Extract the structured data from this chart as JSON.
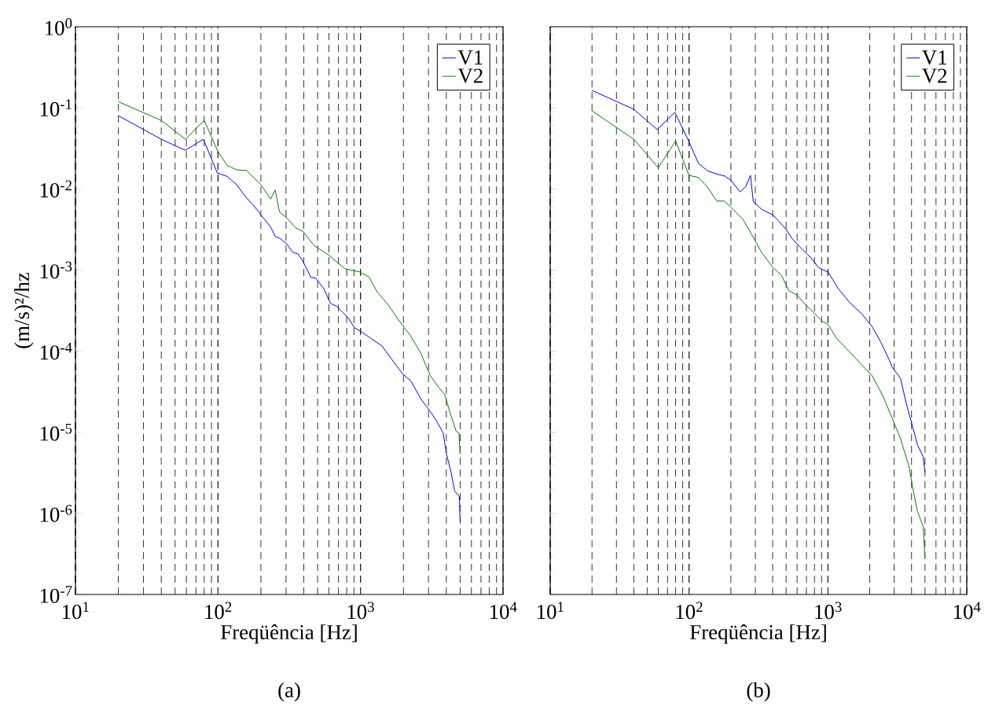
{
  "chart_data": [
    {
      "type": "line",
      "xlabel": "Freqüência [Hz]",
      "ylabel": "(m/s)²/hz",
      "log": "xy",
      "grid": "x",
      "legend": "top right",
      "xlim": [
        10,
        10000
      ],
      "ylim": [
        1e-07,
        1
      ],
      "xticks": [
        {
          "value": 10,
          "label": "10$^{1}$"
        },
        {
          "value": 100,
          "label": "10$^{2}$"
        },
        {
          "value": 1000,
          "label": "10$^{3}$"
        },
        {
          "value": 10000,
          "label": "10$^{4}$"
        }
      ],
      "yticks": [
        {
          "value": 1e-07,
          "label": "10$^{-7}$"
        },
        {
          "value": 1e-06,
          "label": "10$^{-6}$"
        },
        {
          "value": 1e-05,
          "label": "10$^{-5}$"
        },
        {
          "value": 0.0001,
          "label": "10$^{-4}$"
        },
        {
          "value": 0.001,
          "label": "10$^{-3}$"
        },
        {
          "value": 0.01,
          "label": "10$^{-2}$"
        },
        {
          "value": 0.1,
          "label": "10$^{-1}$"
        },
        {
          "value": 1,
          "label": "10$^{0}$"
        }
      ],
      "annotations": [
        "(a)"
      ],
      "series": [
        {
          "name": "V1",
          "color": "#0000ff",
          "x": [
            20,
            40,
            59,
            79,
            99,
            116,
            135,
            158,
            176,
            200,
            234,
            252,
            273,
            304,
            334,
            364,
            394,
            449,
            484,
            553,
            614,
            682,
            757,
            818,
            906,
            1035,
            1209,
            1413,
            1651,
            1982,
            2254,
            2642,
            3090,
            3430,
            3800,
            4010,
            4320,
            4570,
            4940,
            5000
          ],
          "values": [
            0.08,
            0.041,
            0.03,
            0.041,
            0.0157,
            0.0143,
            0.0113,
            0.0078,
            0.0064,
            0.0048,
            0.0034,
            0.0026,
            0.00245,
            0.0021,
            0.00166,
            0.00158,
            0.00129,
            0.00081,
            0.0008,
            0.00059,
            0.00039,
            0.000356,
            0.000295,
            0.000258,
            0.000195,
            0.000169,
            0.00014,
            0.000116,
            8e-05,
            5.2e-05,
            4.3e-05,
            2.6e-05,
            1.8e-05,
            1.36e-05,
            9.8e-06,
            5.4e-06,
            3.2e-06,
            1.9e-06,
            1.6e-06,
            7.9e-07
          ]
        },
        {
          "name": "V2",
          "color": "#008000",
          "x": [
            20,
            40,
            59,
            80,
            100,
            116,
            135,
            158,
            200,
            234,
            252,
            270,
            304,
            351,
            394,
            473,
            598,
            776,
            982,
            1148,
            1307,
            1570,
            1836,
            2255,
            2642,
            3090,
            3520,
            3910,
            4220,
            4690,
            4900,
            5000
          ],
          "values": [
            0.119,
            0.07,
            0.041,
            0.07,
            0.029,
            0.0195,
            0.0172,
            0.0169,
            0.0113,
            0.0075,
            0.0097,
            0.0052,
            0.0044,
            0.0033,
            0.003,
            0.002,
            0.00153,
            0.00104,
            0.00095,
            0.00082,
            0.00054,
            0.00037,
            0.000246,
            0.000153,
            9.5e-05,
            5e-05,
            3.6e-05,
            2.9e-05,
            1.8e-05,
            1.03e-05,
            9.8e-06,
            5.4e-06
          ]
        }
      ]
    },
    {
      "type": "line",
      "xlabel": "Freqüência [Hz]",
      "log": "xy",
      "grid": "x",
      "legend": "top right",
      "tick_labels": "x",
      "xlim": [
        10,
        10000
      ],
      "ylim": [
        1e-07,
        1
      ],
      "xticks": [
        {
          "value": 10,
          "label": "10$^{1}$"
        },
        {
          "value": 100,
          "label": "10$^{2}$"
        },
        {
          "value": 1000,
          "label": "10$^{3}$"
        },
        {
          "value": 10000,
          "label": "10$^{4}$"
        }
      ],
      "yticks": [
        {
          "value": 1e-07,
          "label": null
        },
        {
          "value": 1e-06,
          "label": null
        },
        {
          "value": 1e-05,
          "label": null
        },
        {
          "value": 0.0001,
          "label": null
        },
        {
          "value": 0.001,
          "label": null
        },
        {
          "value": 0.01,
          "label": null
        },
        {
          "value": 0.1,
          "label": null
        },
        {
          "value": 1,
          "label": null
        }
      ],
      "annotations": [
        "(b)"
      ],
      "series": [
        {
          "name": "V1",
          "color": "#0000ff",
          "x": [
            20,
            40,
            59,
            79,
            98,
            117,
            136,
            158,
            181,
            199,
            233,
            256,
            277,
            290,
            334,
            403,
            443,
            498,
            547,
            615,
            692,
            759,
            855,
            1007,
            1186,
            1432,
            1767,
            2080,
            2394,
            2756,
            2897,
            3334,
            3660,
            4020,
            4415,
            4850,
            5000
          ],
          "values": [
            0.164,
            0.096,
            0.054,
            0.088,
            0.041,
            0.0206,
            0.0167,
            0.0153,
            0.0144,
            0.0129,
            0.0092,
            0.0107,
            0.0147,
            0.007,
            0.0056,
            0.00475,
            0.004,
            0.0032,
            0.0025,
            0.002,
            0.00163,
            0.00141,
            0.00107,
            0.00094,
            0.00059,
            0.0004,
            0.000284,
            0.000201,
            0.000131,
            7.9e-05,
            6.4e-05,
            4.6e-05,
            2.3e-05,
            1.27e-05,
            7e-06,
            5e-06,
            3.2e-06
          ]
        },
        {
          "name": "V2",
          "color": "#008000",
          "x": [
            20,
            40,
            60,
            80,
            100,
            117,
            136,
            158,
            179,
            199,
            245,
            304,
            334,
            403,
            464,
            521,
            600,
            692,
            795,
            895,
            1007,
            1159,
            1303,
            1610,
            1811,
            2080,
            2513,
            2897,
            3334,
            3837,
            4120,
            4415,
            4850,
            5000
          ],
          "values": [
            0.092,
            0.041,
            0.0183,
            0.039,
            0.0147,
            0.0138,
            0.0105,
            0.0071,
            0.0071,
            0.006,
            0.0042,
            0.0022,
            0.00163,
            0.00107,
            0.00086,
            0.00056,
            0.00049,
            0.00037,
            0.000296,
            0.000239,
            0.00021,
            0.000143,
            0.000116,
            7.9e-05,
            6.4e-05,
            5e-05,
            2.7e-05,
            1.5e-05,
            8.3e-06,
            3.8e-06,
            1.9e-06,
            1.06e-06,
            6.9e-07,
            2.8e-07
          ]
        }
      ]
    }
  ]
}
